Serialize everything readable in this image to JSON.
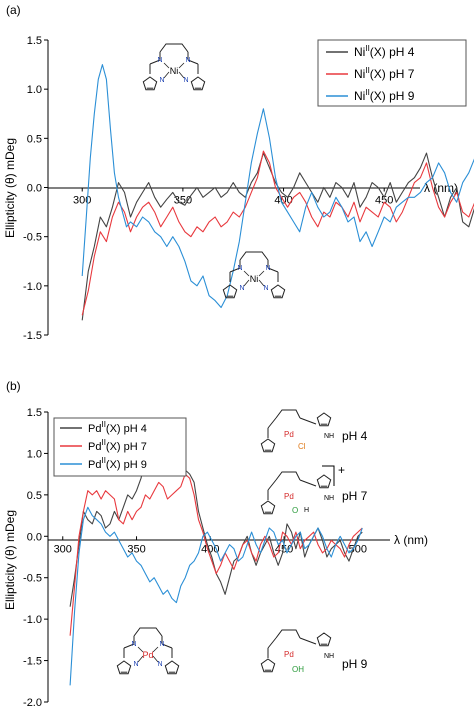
{
  "chart_data": [
    {
      "type": "line",
      "panel_label": "(a)",
      "xlabel": "λ (nm)",
      "ylabel": "Ellipticity (θ) mDeg",
      "xlim": [
        283,
        510
      ],
      "ylim": [
        -1.5,
        1.5
      ],
      "x_ticks": [
        300,
        350,
        400,
        450,
        500
      ],
      "y_ticks": [
        -1.5,
        -1.0,
        -0.5,
        0.0,
        0.5,
        1.0,
        1.5
      ],
      "y_tick_labels": [
        "-1.5",
        "-1.0",
        "-0.5",
        "0.0",
        "0.5",
        "1.0",
        "1.5"
      ],
      "legend": "top-right",
      "grid": false,
      "structure_labels": [
        "Ni",
        "N",
        "N",
        "N",
        "N"
      ],
      "series": [
        {
          "legend_prefix": "Ni",
          "legend_sup": "II",
          "legend_suffix": "(X) pH 4",
          "color": "#444444",
          "x": [
            300,
            303,
            306,
            309,
            312,
            315,
            318,
            321,
            324,
            327,
            330,
            333,
            336,
            339,
            342,
            345,
            348,
            351,
            354,
            357,
            360,
            363,
            366,
            369,
            372,
            375,
            378,
            381,
            384,
            387,
            390,
            393,
            396,
            399,
            402,
            405,
            408,
            411,
            414,
            417,
            420,
            423,
            426,
            429,
            432,
            435,
            438,
            441,
            444,
            447,
            450,
            453,
            456,
            459,
            462,
            465,
            468,
            471,
            474,
            477,
            480,
            483,
            486,
            489,
            492,
            495,
            498,
            501
          ],
          "y": [
            -1.35,
            -0.85,
            -0.6,
            -0.3,
            -0.4,
            -0.2,
            0.05,
            -0.05,
            -0.3,
            -0.15,
            -0.05,
            0.05,
            -0.1,
            -0.2,
            -0.12,
            -0.05,
            -0.15,
            -0.18,
            -0.08,
            0.0,
            -0.1,
            -0.05,
            0.0,
            -0.1,
            -0.05,
            0.05,
            -0.05,
            -0.1,
            0.05,
            0.15,
            0.35,
            0.2,
            0.05,
            -0.05,
            -0.1,
            0.0,
            0.15,
            0.05,
            -0.05,
            -0.15,
            0.0,
            -0.1,
            0.05,
            0.0,
            -0.1,
            0.05,
            -0.2,
            -0.1,
            0.05,
            0.0,
            -0.1,
            0.05,
            -0.15,
            -0.05,
            0.05,
            0.1,
            0.2,
            0.35,
            0.1,
            -0.1,
            -0.3,
            -0.1,
            0.0,
            -0.35,
            -0.4,
            -0.2,
            -0.05,
            0.1
          ]
        },
        {
          "legend_prefix": "Ni",
          "legend_sup": "II",
          "legend_suffix": "(X) pH 7",
          "color": "#e8393e",
          "x": [
            300,
            303,
            306,
            309,
            312,
            315,
            318,
            321,
            324,
            327,
            330,
            333,
            336,
            339,
            342,
            345,
            348,
            351,
            354,
            357,
            360,
            363,
            366,
            369,
            372,
            375,
            378,
            381,
            384,
            387,
            390,
            393,
            396,
            399,
            402,
            405,
            408,
            411,
            414,
            417,
            420,
            423,
            426,
            429,
            432,
            435,
            438,
            441,
            444,
            447,
            450,
            453,
            456,
            459,
            462,
            465,
            468,
            471,
            474,
            477,
            480,
            483,
            486,
            489,
            492,
            495,
            498,
            501
          ],
          "y": [
            -1.3,
            -1.05,
            -0.7,
            -0.45,
            -0.55,
            -0.3,
            -0.15,
            -0.25,
            -0.45,
            -0.3,
            -0.2,
            -0.15,
            -0.25,
            -0.4,
            -0.3,
            -0.2,
            -0.35,
            -0.45,
            -0.5,
            -0.4,
            -0.45,
            -0.35,
            -0.3,
            -0.4,
            -0.35,
            -0.25,
            -0.3,
            -0.2,
            -0.05,
            0.1,
            0.37,
            0.25,
            0.0,
            -0.1,
            -0.2,
            -0.1,
            -0.05,
            -0.15,
            -0.3,
            -0.4,
            -0.25,
            -0.3,
            -0.15,
            -0.2,
            -0.3,
            -0.15,
            -0.35,
            -0.2,
            -0.25,
            -0.3,
            -0.15,
            -0.2,
            -0.35,
            -0.25,
            -0.1,
            0.05,
            0.1,
            0.25,
            0.0,
            -0.2,
            -0.3,
            -0.15,
            -0.05,
            -0.25,
            -0.3,
            -0.15,
            0.0,
            0.1
          ]
        },
        {
          "legend_prefix": "Ni",
          "legend_sup": "II",
          "legend_suffix": "(X) pH 9",
          "color": "#2b8fd6",
          "x": [
            300,
            302,
            304,
            306,
            308,
            310,
            312,
            314,
            316,
            318,
            320,
            322,
            324,
            327,
            330,
            333,
            336,
            339,
            342,
            345,
            348,
            351,
            354,
            357,
            360,
            363,
            366,
            369,
            372,
            375,
            378,
            381,
            384,
            387,
            390,
            393,
            396,
            399,
            402,
            405,
            408,
            411,
            414,
            417,
            420,
            423,
            426,
            429,
            432,
            435,
            438,
            441,
            444,
            447,
            450,
            453,
            456,
            459,
            462,
            465,
            468,
            471,
            474,
            477,
            480,
            483,
            486,
            489,
            492,
            495,
            498,
            501
          ],
          "y": [
            -0.9,
            -0.3,
            0.3,
            0.75,
            1.1,
            1.25,
            1.1,
            0.6,
            0.15,
            -0.1,
            -0.25,
            -0.4,
            -0.35,
            -0.4,
            -0.3,
            -0.35,
            -0.45,
            -0.5,
            -0.6,
            -0.5,
            -0.6,
            -0.75,
            -0.95,
            -1.0,
            -0.9,
            -1.1,
            -1.15,
            -1.22,
            -1.1,
            -0.85,
            -0.55,
            -0.15,
            0.25,
            0.55,
            0.8,
            0.5,
            0.1,
            -0.15,
            -0.25,
            -0.35,
            -0.45,
            -0.2,
            -0.05,
            -0.2,
            -0.3,
            -0.25,
            -0.1,
            -0.2,
            -0.35,
            -0.3,
            -0.55,
            -0.45,
            -0.6,
            -0.45,
            -0.3,
            -0.35,
            -0.2,
            -0.15,
            -0.1,
            -0.1,
            -0.05,
            0.05,
            0.1,
            0.25,
            0.15,
            -0.05,
            -0.15,
            0.05,
            0.15,
            0.3,
            0.25,
            0.3
          ]
        }
      ]
    },
    {
      "type": "line",
      "panel_label": "(b)",
      "xlabel": "λ (nm)",
      "ylabel": "Ellipticity (θ) mDeg",
      "xlim": [
        290,
        515
      ],
      "ylim": [
        -2.0,
        1.5
      ],
      "x_ticks": [
        300,
        350,
        400,
        450,
        500
      ],
      "y_ticks": [
        -2.0,
        -1.5,
        -1.0,
        -0.5,
        0.0,
        0.5,
        1.0,
        1.5
      ],
      "y_tick_labels": [
        "-2.0",
        "-1.5",
        "-1.0",
        "-0.5",
        "0.0",
        "0.5",
        "1.0",
        "1.5"
      ],
      "legend": "top-left",
      "grid": false,
      "annotations": [
        "pH 4",
        "pH 7",
        "pH 9",
        "+"
      ],
      "structure_labels": [
        "Pd",
        "Cl",
        "O",
        "H",
        "OH",
        "NH",
        "H",
        "N"
      ],
      "series": [
        {
          "legend_prefix": "Pd",
          "legend_sup": "II",
          "legend_suffix": "(X) pH 4",
          "color": "#444444",
          "x": [
            305,
            308,
            311,
            314,
            317,
            320,
            323,
            326,
            329,
            332,
            335,
            338,
            341,
            344,
            347,
            350,
            353,
            356,
            359,
            362,
            365,
            368,
            371,
            374,
            377,
            380,
            383,
            386,
            389,
            392,
            395,
            398,
            401,
            404,
            407,
            410,
            413,
            416,
            419,
            422,
            425,
            428,
            431,
            434,
            437,
            440,
            443,
            446,
            449,
            452,
            455,
            458,
            461,
            464,
            467,
            470,
            473,
            476,
            479,
            482,
            485,
            488,
            491,
            494,
            497,
            500,
            503
          ],
          "y": [
            -0.85,
            -0.5,
            -0.1,
            0.3,
            0.2,
            0.15,
            0.3,
            0.25,
            0.1,
            0.15,
            0.3,
            0.2,
            0.35,
            0.5,
            0.45,
            0.55,
            0.7,
            0.9,
            0.85,
            1.05,
            1.0,
            1.1,
            1.05,
            1.15,
            0.95,
            0.85,
            0.8,
            0.75,
            0.65,
            0.3,
            0.1,
            -0.1,
            -0.25,
            -0.45,
            -0.55,
            -0.7,
            -0.5,
            -0.3,
            -0.25,
            -0.1,
            0.0,
            -0.2,
            -0.35,
            -0.2,
            -0.1,
            0.0,
            -0.2,
            -0.35,
            -0.2,
            0.15,
            0.05,
            -0.15,
            0.05,
            -0.25,
            -0.1,
            0.0,
            0.1,
            -0.05,
            -0.25,
            -0.15,
            -0.1,
            -0.05,
            -0.2,
            -0.3,
            -0.15,
            0.0,
            0.05
          ]
        },
        {
          "legend_prefix": "Pd",
          "legend_sup": "II",
          "legend_suffix": "(X) pH 7",
          "color": "#e8393e",
          "x": [
            305,
            308,
            311,
            314,
            317,
            320,
            323,
            326,
            329,
            332,
            335,
            338,
            341,
            344,
            347,
            350,
            353,
            356,
            359,
            362,
            365,
            368,
            371,
            374,
            377,
            380,
            383,
            386,
            389,
            392,
            395,
            398,
            401,
            404,
            407,
            410,
            413,
            416,
            419,
            422,
            425,
            428,
            431,
            434,
            437,
            440,
            443,
            446,
            449,
            452,
            455,
            458,
            461,
            464,
            467,
            470,
            473,
            476,
            479,
            482,
            485,
            488,
            491,
            494,
            497,
            500,
            503
          ],
          "y": [
            -1.2,
            -0.6,
            0.0,
            0.3,
            0.55,
            0.5,
            0.55,
            0.45,
            0.55,
            0.5,
            0.45,
            0.2,
            0.15,
            0.3,
            0.2,
            0.3,
            0.35,
            0.5,
            0.45,
            0.55,
            0.65,
            0.6,
            0.45,
            0.5,
            0.55,
            0.6,
            0.75,
            0.7,
            0.5,
            0.2,
            0.05,
            -0.15,
            -0.3,
            -0.45,
            -0.35,
            -0.2,
            -0.3,
            -0.4,
            -0.25,
            -0.1,
            -0.05,
            -0.2,
            -0.3,
            -0.1,
            0.0,
            -0.1,
            -0.25,
            -0.2,
            0.05,
            0.0,
            -0.1,
            0.05,
            -0.15,
            -0.05,
            0.0,
            0.05,
            -0.1,
            -0.2,
            -0.15,
            -0.05,
            -0.1,
            -0.15,
            -0.25,
            -0.1,
            0.0,
            0.05,
            0.1
          ]
        },
        {
          "legend_prefix": "Pd",
          "legend_sup": "II",
          "legend_suffix": "(X) pH 9",
          "color": "#2b8fd6",
          "x": [
            305,
            308,
            311,
            314,
            317,
            320,
            323,
            326,
            329,
            332,
            335,
            338,
            341,
            344,
            347,
            350,
            353,
            356,
            359,
            362,
            365,
            368,
            371,
            374,
            377,
            380,
            383,
            386,
            389,
            392,
            395,
            398,
            401,
            404,
            407,
            410,
            413,
            416,
            419,
            422,
            425,
            428,
            431,
            434,
            437,
            440,
            443,
            446,
            449,
            452,
            455,
            458,
            461,
            464,
            467,
            470,
            473,
            476,
            479,
            482,
            485,
            488,
            491,
            494,
            497,
            500,
            503
          ],
          "y": [
            -1.8,
            -0.9,
            -0.2,
            0.2,
            0.35,
            0.25,
            0.2,
            0.15,
            0.05,
            0.0,
            0.05,
            -0.05,
            -0.15,
            -0.25,
            -0.2,
            -0.3,
            -0.35,
            -0.45,
            -0.55,
            -0.5,
            -0.6,
            -0.7,
            -0.65,
            -0.75,
            -0.8,
            -0.6,
            -0.5,
            -0.35,
            -0.3,
            -0.2,
            0.0,
            0.05,
            -0.05,
            -0.15,
            -0.3,
            -0.2,
            -0.1,
            -0.15,
            -0.3,
            -0.25,
            -0.1,
            0.05,
            -0.1,
            -0.2,
            -0.05,
            0.1,
            0.05,
            -0.1,
            -0.05,
            -0.2,
            -0.1,
            0.0,
            0.05,
            -0.15,
            -0.1,
            0.0,
            0.1,
            0.0,
            -0.15,
            -0.25,
            -0.1,
            0.0,
            -0.1,
            -0.2,
            -0.15,
            -0.05,
            0.1
          ]
        }
      ]
    }
  ]
}
